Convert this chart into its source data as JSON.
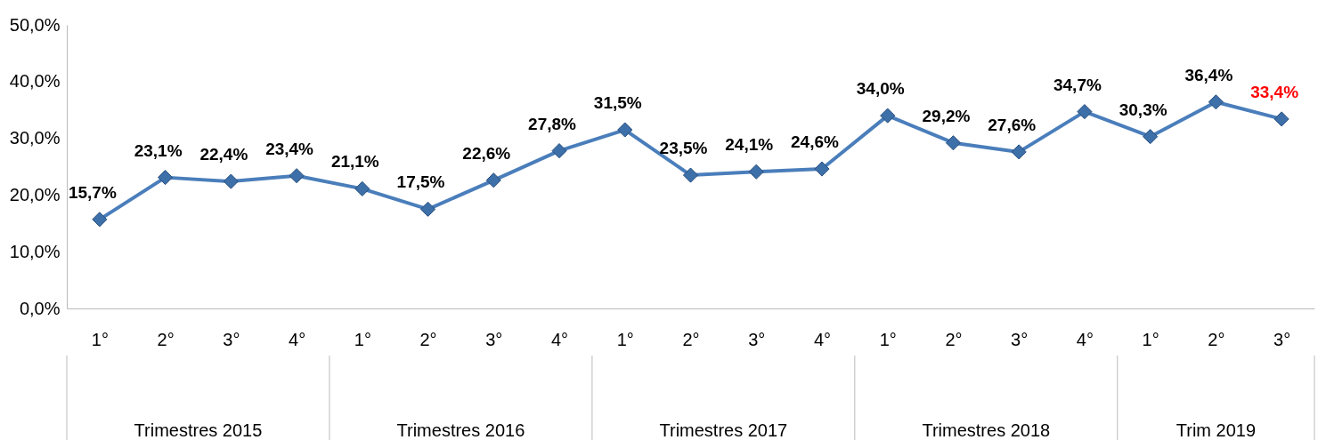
{
  "chart_data": {
    "type": "line",
    "categories": [
      "1°",
      "2°",
      "3°",
      "4°",
      "1°",
      "2°",
      "3°",
      "4°",
      "1°",
      "2°",
      "3°",
      "4°",
      "1°",
      "2°",
      "3°",
      "4°",
      "1°",
      "2°",
      "3°"
    ],
    "series": [
      {
        "color": "#4a7ebb",
        "values": [
          15.7,
          23.1,
          22.4,
          23.4,
          21.1,
          17.5,
          22.6,
          27.8,
          31.5,
          23.5,
          24.1,
          24.6,
          34.0,
          29.2,
          27.6,
          34.7,
          30.3,
          36.4,
          33.4
        ]
      }
    ],
    "value_labels": [
      "15,7%",
      "23,1%",
      "22,4%",
      "23,4%",
      "21,1%",
      "17,5%",
      "22,6%",
      "27,8%",
      "31,5%",
      "23,5%",
      "24,1%",
      "24,6%",
      "34,0%",
      "29,2%",
      "27,6%",
      "34,7%",
      "30,3%",
      "36,4%",
      "33,4%"
    ],
    "annotations": [
      "Trimestres 2015",
      "Trimestres 2016",
      "Trimestres 2017",
      "Trimestres 2018",
      "Trim 2019"
    ],
    "ylim": [
      0,
      50
    ],
    "yticks": [
      {
        "value": 0,
        "label": "0,0%"
      },
      {
        "value": 10,
        "label": "10,0%"
      },
      {
        "value": 20,
        "label": "20,0%"
      },
      {
        "value": 30,
        "label": "30,0%"
      },
      {
        "value": 40,
        "label": "40,0%"
      },
      {
        "value": 50,
        "label": "50,0%"
      }
    ],
    "marker": "diamond",
    "line_style": "solid"
  }
}
